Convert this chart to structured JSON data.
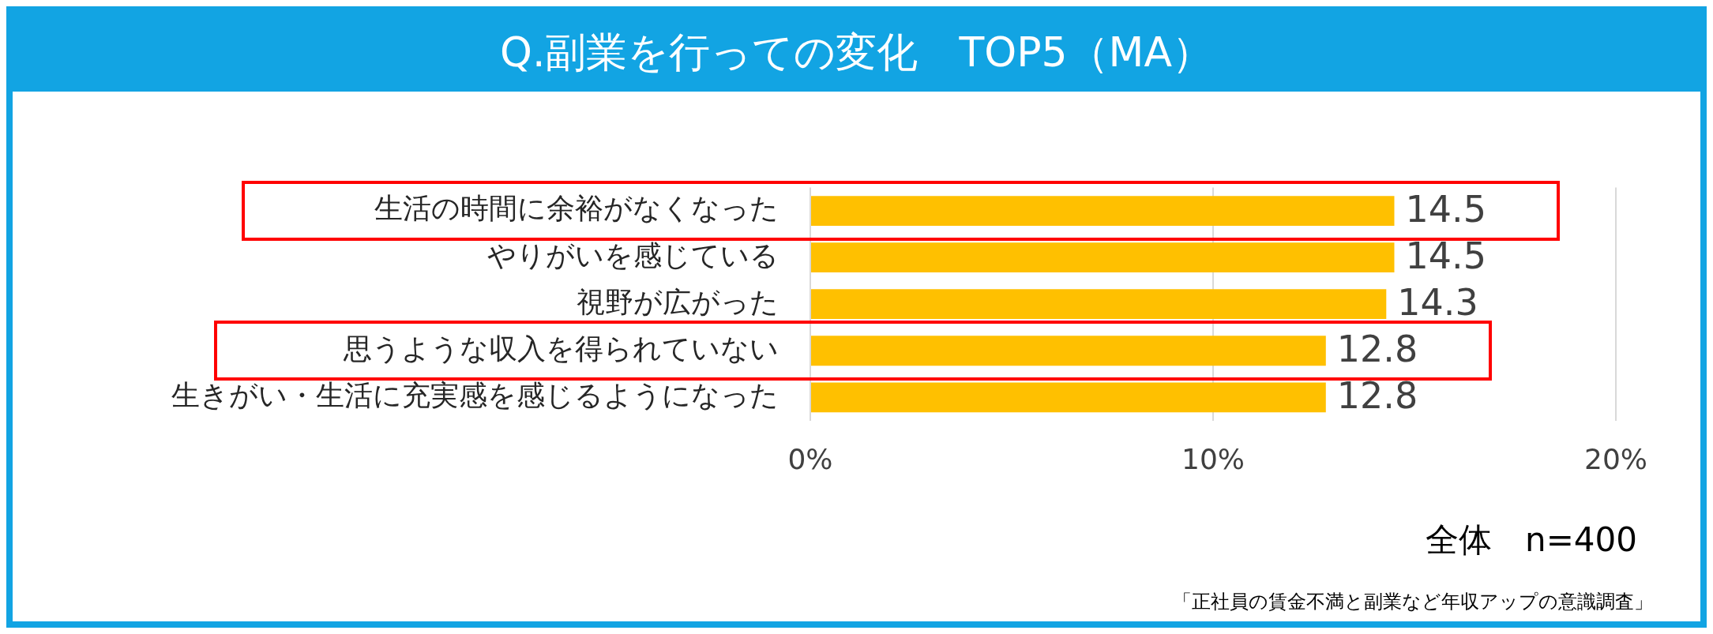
{
  "chart_data": {
    "type": "bar",
    "orientation": "horizontal",
    "title": "Q.副業を行っての変化　TOP5（MA）",
    "categories": [
      "生活の時間に余裕がなくなった",
      "やりがいを感じている",
      "視野が広がった",
      "思うような収入を得られていない",
      "生きがい・生活に充実感を感じるようになった"
    ],
    "values": [
      14.5,
      14.5,
      14.3,
      12.8,
      12.8
    ],
    "color": "#ffc000",
    "data_labels": true,
    "xlim": [
      0,
      20
    ],
    "xticks": [
      {
        "value": 0,
        "label": "0%"
      },
      {
        "value": 10,
        "label": "10%"
      },
      {
        "value": 20,
        "label": "20%"
      }
    ],
    "grid": "x",
    "annotations": [
      "全体　n=400",
      "「正社員の賃金不満と副業など年収アップの意識調査」"
    ]
  }
}
